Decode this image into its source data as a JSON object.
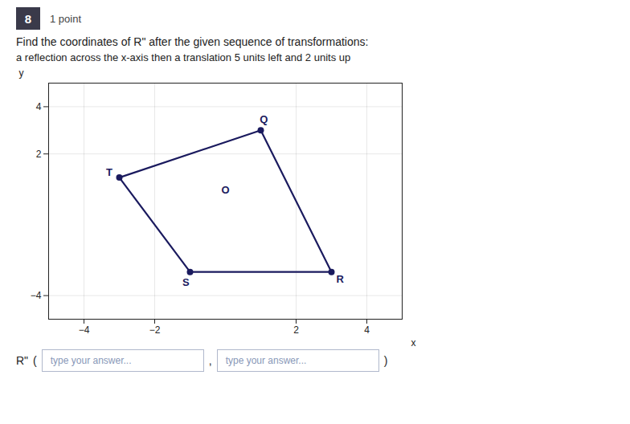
{
  "chart_data": {
    "type": "polygon",
    "title": "Find the coordinates of R\" after the given sequence of transformations:",
    "subtitle": "a reflection across the x-axis then a translation 5 units left and 2 units up",
    "x": [
      -3,
      1,
      3,
      -1
    ],
    "values": [
      1,
      3,
      -3,
      -3
    ],
    "color": "#1a1a5e",
    "marker": "circle",
    "xlabel": "x",
    "ylabel": "y",
    "xlim": [
      -5,
      5
    ],
    "ylim": [
      -5,
      5
    ],
    "xticks": [
      -4,
      -2,
      2,
      4
    ],
    "yticks": [
      -4,
      2,
      4
    ],
    "grid": true,
    "annotations": [
      {
        "text": "8"
      },
      {
        "text": "1 point"
      },
      {
        "text": "R\""
      },
      {
        "text": "("
      },
      {
        "text": "type your answer..."
      },
      {
        "text": ","
      },
      {
        "text": "type your answer..."
      },
      {
        "text": ")"
      },
      {
        "text": "T",
        "x": -3,
        "y": 1
      },
      {
        "text": "Q",
        "x": 1,
        "y": 3
      },
      {
        "text": "R",
        "x": 3,
        "y": -3
      },
      {
        "text": "S",
        "x": -1,
        "y": -3
      },
      {
        "text": "O",
        "x": 0,
        "y": 0
      }
    ]
  }
}
